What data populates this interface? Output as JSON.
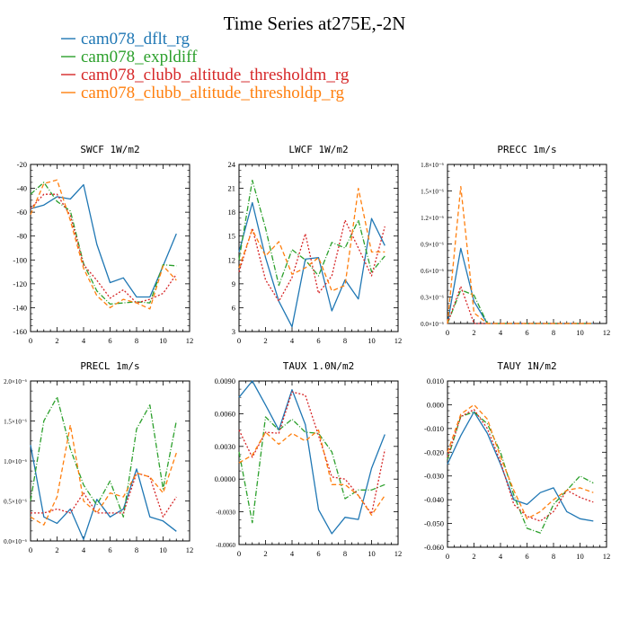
{
  "title": "Time Series at275E,-2N",
  "legend": [
    {
      "name": "cam078_dflt_rg",
      "color": "#1f77b4"
    },
    {
      "name": "cam078_expldiff",
      "color": "#2ca02c"
    },
    {
      "name": "cam078_clubb_altitude_thresholdm_rg",
      "color": "#d62728"
    },
    {
      "name": "cam078_clubb_altitude_thresholdp_rg",
      "color": "#ff7f0e"
    }
  ],
  "chart_data": [
    {
      "type": "line",
      "title": "SWCF   1W/m2",
      "x": [
        0,
        1,
        2,
        3,
        4,
        5,
        6,
        7,
        8,
        9,
        10,
        11
      ],
      "xlim": [
        0,
        12
      ],
      "xticks": [
        0,
        2,
        4,
        6,
        8,
        10,
        12
      ],
      "ylim": [
        -160,
        -20
      ],
      "yticks": [
        "-160",
        "-140",
        "-120",
        "-100",
        "-80",
        "-60",
        "-40",
        "-20"
      ],
      "series": [
        {
          "name": "cam078_dflt_rg",
          "values": [
            -57,
            -54,
            -47,
            -49,
            -37,
            -87,
            -119,
            -115,
            -131,
            -131,
            -105,
            -78
          ]
        },
        {
          "name": "cam078_expldiff",
          "values": [
            -45,
            -35,
            -51,
            -59,
            -103,
            -126,
            -137,
            -136,
            -135,
            -136,
            -104,
            -105
          ]
        },
        {
          "name": "cam078_clubb_altitude_thresholdm_rg",
          "values": [
            -57,
            -45,
            -45,
            -63,
            -104,
            -117,
            -132,
            -125,
            -136,
            -133,
            -128,
            -112
          ]
        },
        {
          "name": "cam078_clubb_altitude_thresholdp_rg",
          "values": [
            -62,
            -36,
            -33,
            -67,
            -107,
            -130,
            -140,
            -133,
            -136,
            -141,
            -105,
            -117
          ]
        }
      ]
    },
    {
      "type": "line",
      "title": "LWCF   1W/m2",
      "x": [
        0,
        1,
        2,
        3,
        4,
        5,
        6,
        7,
        8,
        9,
        10,
        11
      ],
      "xlim": [
        0,
        12
      ],
      "xticks": [
        0,
        2,
        4,
        6,
        8,
        10,
        12
      ],
      "ylim": [
        3,
        24
      ],
      "yticks": [
        "3",
        "6",
        "9",
        "12",
        "15",
        "18",
        "21",
        "24"
      ],
      "series": [
        {
          "name": "cam078_dflt_rg",
          "values": [
            13,
            19.2,
            12.3,
            6.8,
            3.6,
            12.1,
            12.3,
            5.6,
            9.5,
            7.1,
            17.2,
            13.8
          ]
        },
        {
          "name": "cam078_expldiff",
          "values": [
            12,
            22,
            16,
            8.8,
            13.3,
            12,
            10,
            14.2,
            13.5,
            17,
            10.5,
            12.5
          ]
        },
        {
          "name": "cam078_clubb_altitude_thresholdm_rg",
          "values": [
            10.5,
            16,
            9.5,
            6.8,
            9.8,
            15.3,
            7.8,
            10,
            17,
            13.5,
            10,
            16.2
          ]
        },
        {
          "name": "cam078_clubb_altitude_thresholdp_rg",
          "values": [
            11,
            15.8,
            12.5,
            14.3,
            10.2,
            11,
            12.3,
            8.1,
            8.8,
            21,
            13,
            13
          ]
        }
      ]
    },
    {
      "type": "line",
      "title": "PRECC   1m/s",
      "x": [
        0,
        1,
        2,
        3,
        4,
        5,
        6,
        7,
        8,
        9,
        10,
        11
      ],
      "xlim": [
        0,
        12
      ],
      "xticks": [
        0,
        2,
        4,
        6,
        8,
        10,
        12
      ],
      "ylim": [
        0,
        1.8
      ],
      "yticks": [
        "0.0×10⁻⁶",
        "0.3×10⁻⁶",
        "0.6×10⁻⁶",
        "0.9×10⁻⁶",
        "1.2×10⁻⁶",
        "1.5×10⁻⁶",
        "1.8×10⁻⁶"
      ],
      "series": [
        {
          "name": "cam078_dflt_rg",
          "values": [
            0,
            0.85,
            0.25,
            0,
            0,
            0,
            0,
            0,
            0,
            0,
            0,
            0
          ]
        },
        {
          "name": "cam078_expldiff",
          "values": [
            0,
            0.38,
            0.32,
            0,
            0,
            0,
            0,
            0,
            0,
            0,
            0,
            0
          ]
        },
        {
          "name": "cam078_clubb_altitude_thresholdm_rg",
          "values": [
            0,
            0.42,
            0,
            0,
            0,
            0,
            0,
            0,
            0,
            0,
            0,
            0
          ]
        },
        {
          "name": "cam078_clubb_altitude_thresholdp_rg",
          "values": [
            0,
            1.55,
            0.12,
            0,
            0,
            0,
            0,
            0,
            0,
            0,
            0,
            0
          ]
        }
      ]
    },
    {
      "type": "line",
      "title": "PRECL   1m/s",
      "x": [
        0,
        1,
        2,
        3,
        4,
        5,
        6,
        7,
        8,
        9,
        10,
        11
      ],
      "xlim": [
        0,
        12
      ],
      "xticks": [
        0,
        2,
        4,
        6,
        8,
        10,
        12
      ],
      "ylim": [
        0,
        2.0
      ],
      "yticks": [
        "0.0×10⁻⁶",
        "0.5×10⁻⁶",
        "1.0×10⁻⁶",
        "1.5×10⁻⁶",
        "2.0×10⁻⁶"
      ],
      "series": [
        {
          "name": "cam078_dflt_rg",
          "values": [
            1.2,
            0.3,
            0.22,
            0.4,
            0.02,
            0.52,
            0.3,
            0.4,
            0.9,
            0.3,
            0.25,
            0.12
          ]
        },
        {
          "name": "cam078_expldiff",
          "values": [
            0.5,
            1.5,
            1.8,
            1.15,
            0.7,
            0.45,
            0.75,
            0.3,
            1.4,
            1.7,
            0.65,
            1.5
          ]
        },
        {
          "name": "cam078_clubb_altitude_thresholdm_rg",
          "values": [
            0.35,
            0.35,
            0.4,
            0.35,
            0.6,
            0.35,
            0.35,
            0.35,
            0.85,
            0.8,
            0.3,
            0.55
          ]
        },
        {
          "name": "cam078_clubb_altitude_thresholdp_rg",
          "values": [
            0.3,
            0.2,
            0.55,
            1.45,
            0.5,
            0.35,
            0.6,
            0.55,
            0.85,
            0.8,
            0.6,
            1.1
          ]
        }
      ]
    },
    {
      "type": "line",
      "title": "TAUX   1.0N/m2",
      "x": [
        0,
        1,
        2,
        3,
        4,
        5,
        6,
        7,
        8,
        9,
        10,
        11
      ],
      "xlim": [
        0,
        12
      ],
      "xticks": [
        0,
        2,
        4,
        6,
        8,
        10,
        12
      ],
      "ylim": [
        -0.006,
        0.009
      ],
      "yticks": [
        "-0.0060",
        "-0.0030",
        "0.0000",
        "0.0030",
        "0.0060",
        "0.0090"
      ],
      "series": [
        {
          "name": "cam078_dflt_rg",
          "values": [
            0.0075,
            0.009,
            0.0068,
            0.0045,
            0.0082,
            0.005,
            -0.0028,
            -0.005,
            -0.0035,
            -0.0037,
            0.001,
            0.0041
          ]
        },
        {
          "name": "cam078_expldiff",
          "values": [
            0.0025,
            -0.004,
            0.0057,
            0.0045,
            0.0055,
            0.0043,
            0.0042,
            0.0025,
            -0.0018,
            -0.001,
            -0.001,
            -0.0005
          ]
        },
        {
          "name": "cam078_clubb_altitude_thresholdm_rg",
          "values": [
            0.0045,
            0.002,
            0.0043,
            0.0042,
            0.008,
            0.0077,
            0.004,
            0.0002,
            0.0,
            -0.0015,
            -0.0032,
            0.0027
          ]
        },
        {
          "name": "cam078_clubb_altitude_thresholdp_rg",
          "values": [
            0.0015,
            0.0022,
            0.0043,
            0.0032,
            0.0042,
            0.0035,
            0.0045,
            -0.0005,
            -0.0005,
            -0.0015,
            -0.0033,
            -0.0015
          ]
        }
      ]
    },
    {
      "type": "line",
      "title": "TAUY   1N/m2",
      "x": [
        0,
        1,
        2,
        3,
        4,
        5,
        6,
        7,
        8,
        9,
        10,
        11
      ],
      "xlim": [
        0,
        12
      ],
      "xticks": [
        0,
        2,
        4,
        6,
        8,
        10,
        12
      ],
      "ylim": [
        -0.06,
        0.01
      ],
      "yticks": [
        "-0.060",
        "-0.050",
        "-0.040",
        "-0.030",
        "-0.020",
        "-0.010",
        "0.000",
        "0.010"
      ],
      "series": [
        {
          "name": "cam078_dflt_rg",
          "values": [
            -0.025,
            -0.013,
            -0.003,
            -0.012,
            -0.025,
            -0.04,
            -0.042,
            -0.037,
            -0.035,
            -0.045,
            -0.048,
            -0.049
          ]
        },
        {
          "name": "cam078_expldiff",
          "values": [
            -0.023,
            -0.005,
            -0.003,
            -0.008,
            -0.02,
            -0.038,
            -0.052,
            -0.054,
            -0.042,
            -0.036,
            -0.03,
            -0.033
          ]
        },
        {
          "name": "cam078_clubb_altitude_thresholdm_rg",
          "values": [
            -0.022,
            -0.005,
            -0.002,
            -0.01,
            -0.024,
            -0.042,
            -0.047,
            -0.049,
            -0.045,
            -0.036,
            -0.039,
            -0.041
          ]
        },
        {
          "name": "cam078_clubb_altitude_thresholdp_rg",
          "values": [
            -0.02,
            -0.004,
            0.0,
            -0.006,
            -0.022,
            -0.036,
            -0.048,
            -0.045,
            -0.04,
            -0.036,
            -0.035,
            -0.037
          ]
        }
      ]
    }
  ]
}
